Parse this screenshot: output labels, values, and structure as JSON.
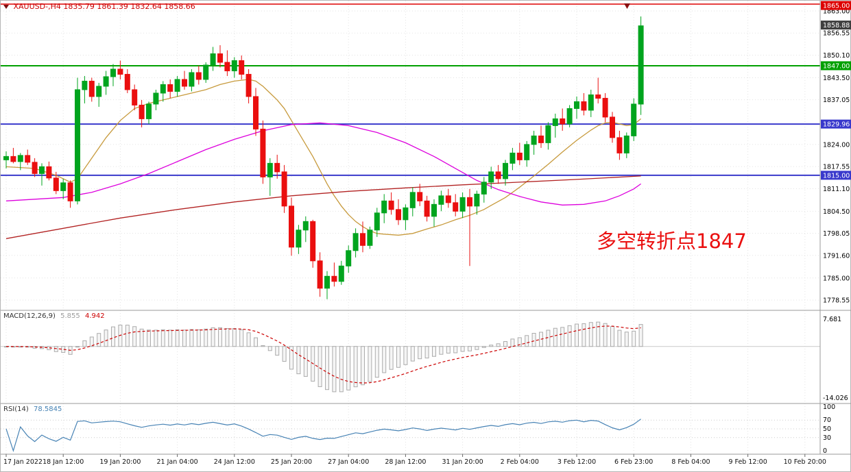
{
  "colors": {
    "up": "#00a41e",
    "down": "#ea0f0f",
    "ma_fast": "#c79a3c",
    "ma_mid": "#dd00dd",
    "ma_slow": "#b22222",
    "level_red": "#dd0000",
    "level_green": "#00a000",
    "level_blue": "#3939cc",
    "tag_current_bg": "#3f3f3f",
    "macd_hist_stroke": "#ababab",
    "macd_signal": "#cc0000",
    "rsi_line": "#4682b4",
    "header_text": "#cc0000",
    "annotation": "#ea1010",
    "grid": "#e3e3e3"
  },
  "header": {
    "symbol": "XAUUSD-,H4",
    "ohlc": "1835.79 1861.39 1832.64 1858.66"
  },
  "annotation": {
    "text": "多空转折点1847"
  },
  "price_axis": {
    "ticks": [
      "1863.00",
      "1856.55",
      "1850.10",
      "1843.50",
      "1837.05",
      "1824.00",
      "1817.55",
      "1811.10",
      "1804.50",
      "1798.05",
      "1791.60",
      "1785.00",
      "1778.55"
    ],
    "tags": [
      {
        "text": "1865.00",
        "price": 1865.0,
        "bg": "#dd0000"
      },
      {
        "text": "1858.88",
        "price": 1858.88,
        "bg": "#3f3f3f"
      },
      {
        "text": "1847.00",
        "price": 1847.0,
        "bg": "#00a000"
      },
      {
        "text": "1829.96",
        "price": 1829.96,
        "bg": "#3939cc"
      },
      {
        "text": "1815.00",
        "price": 1815.0,
        "bg": "#3939cc"
      }
    ]
  },
  "indicators": {
    "macd": {
      "label": "MACD(12,26,9)",
      "value_main": "5.855",
      "value_signal": "4.942",
      "axis_max": "7.681",
      "axis_min": "-14.026"
    },
    "rsi": {
      "label": "RSI(14)",
      "value": "78.5845",
      "axis": [
        "100",
        "70",
        "50",
        "30",
        "0"
      ],
      "levels": [
        70,
        50,
        30
      ]
    }
  },
  "chart_data": {
    "type": "candlestick",
    "symbol": "XAUUSD",
    "timeframe": "H4",
    "price_range": [
      1778.55,
      1865.0
    ],
    "levels": [
      {
        "price": 1865.0,
        "color_key": "level_red",
        "width": 1.4
      },
      {
        "price": 1847.0,
        "color_key": "level_green",
        "width": 2
      },
      {
        "price": 1829.96,
        "color_key": "level_blue",
        "width": 2
      },
      {
        "price": 1815.0,
        "color_key": "level_blue",
        "width": 2
      }
    ],
    "time_labels": [
      "17 Jan 2022",
      "18 Jan 12:00",
      "19 Jan 20:00",
      "21 Jan 04:00",
      "24 Jan 12:00",
      "25 Jan 20:00",
      "27 Jan 04:00",
      "28 Jan 12:00",
      "31 Jan 20:00",
      "2 Feb 04:00",
      "3 Feb 12:00",
      "6 Feb 23:00",
      "8 Feb 04:00",
      "9 Feb 12:00",
      "10 Feb 20:00"
    ],
    "candles": [
      [
        1819.5,
        1822.0,
        1817.0,
        1820.5
      ],
      [
        1820.5,
        1823.0,
        1818.5,
        1819.0
      ],
      [
        1819.0,
        1821.5,
        1816.5,
        1820.8
      ],
      [
        1820.8,
        1822.5,
        1818.0,
        1818.8
      ],
      [
        1818.8,
        1820.0,
        1814.5,
        1815.5
      ],
      [
        1815.5,
        1818.5,
        1812.0,
        1817.5
      ],
      [
        1817.5,
        1819.0,
        1813.5,
        1814.2
      ],
      [
        1814.2,
        1816.0,
        1809.5,
        1810.5
      ],
      [
        1810.5,
        1814.0,
        1808.0,
        1812.8
      ],
      [
        1812.8,
        1813.5,
        1805.5,
        1807.5
      ],
      [
        1807.5,
        1843.5,
        1806.5,
        1840.0
      ],
      [
        1840.0,
        1844.0,
        1836.0,
        1842.5
      ],
      [
        1842.5,
        1843.5,
        1836.5,
        1838.0
      ],
      [
        1838.0,
        1842.0,
        1835.0,
        1841.0
      ],
      [
        1841.0,
        1845.5,
        1838.5,
        1843.8
      ],
      [
        1843.8,
        1847.5,
        1841.0,
        1846.0
      ],
      [
        1846.0,
        1848.5,
        1843.0,
        1844.5
      ],
      [
        1844.5,
        1846.0,
        1839.0,
        1840.0
      ],
      [
        1840.0,
        1841.5,
        1834.0,
        1835.5
      ],
      [
        1835.5,
        1837.0,
        1829.0,
        1831.5
      ],
      [
        1831.5,
        1836.5,
        1830.0,
        1835.8
      ],
      [
        1835.8,
        1840.0,
        1834.0,
        1839.0
      ],
      [
        1839.0,
        1842.5,
        1836.5,
        1841.5
      ],
      [
        1841.5,
        1843.0,
        1837.5,
        1839.5
      ],
      [
        1839.5,
        1844.0,
        1838.0,
        1843.0
      ],
      [
        1843.0,
        1845.5,
        1840.0,
        1841.0
      ],
      [
        1841.0,
        1846.0,
        1839.5,
        1845.0
      ],
      [
        1845.0,
        1847.0,
        1841.5,
        1843.0
      ],
      [
        1843.0,
        1848.0,
        1842.0,
        1847.2
      ],
      [
        1847.2,
        1852.5,
        1845.5,
        1850.5
      ],
      [
        1850.5,
        1853.0,
        1846.5,
        1848.0
      ],
      [
        1848.0,
        1851.5,
        1844.0,
        1845.5
      ],
      [
        1845.5,
        1849.5,
        1843.5,
        1848.5
      ],
      [
        1848.5,
        1850.0,
        1843.0,
        1844.5
      ],
      [
        1844.5,
        1846.0,
        1836.0,
        1838.0
      ],
      [
        1838.0,
        1840.5,
        1826.5,
        1828.5
      ],
      [
        1828.5,
        1831.0,
        1812.5,
        1814.5
      ],
      [
        1814.5,
        1820.0,
        1809.0,
        1818.5
      ],
      [
        1818.5,
        1821.0,
        1814.0,
        1816.0
      ],
      [
        1816.0,
        1818.0,
        1804.0,
        1806.0
      ],
      [
        1806.0,
        1808.5,
        1791.5,
        1794.0
      ],
      [
        1794.0,
        1800.5,
        1792.0,
        1799.0
      ],
      [
        1799.0,
        1803.0,
        1795.5,
        1801.5
      ],
      [
        1801.5,
        1802.0,
        1788.0,
        1790.0
      ],
      [
        1790.0,
        1792.5,
        1779.5,
        1782.0
      ],
      [
        1782.0,
        1787.0,
        1778.8,
        1785.5
      ],
      [
        1785.5,
        1789.5,
        1782.5,
        1784.0
      ],
      [
        1784.0,
        1790.0,
        1783.0,
        1788.5
      ],
      [
        1788.5,
        1794.5,
        1786.5,
        1793.0
      ],
      [
        1793.0,
        1799.5,
        1791.0,
        1798.0
      ],
      [
        1798.0,
        1801.5,
        1792.5,
        1794.5
      ],
      [
        1794.5,
        1800.0,
        1793.5,
        1799.0
      ],
      [
        1799.0,
        1805.5,
        1797.0,
        1804.0
      ],
      [
        1804.0,
        1809.5,
        1801.0,
        1807.5
      ],
      [
        1807.5,
        1810.0,
        1803.5,
        1805.0
      ],
      [
        1805.0,
        1808.0,
        1800.5,
        1802.0
      ],
      [
        1802.0,
        1806.5,
        1799.0,
        1805.5
      ],
      [
        1805.5,
        1811.5,
        1803.0,
        1810.0
      ],
      [
        1810.0,
        1812.5,
        1806.0,
        1807.5
      ],
      [
        1807.5,
        1809.0,
        1801.5,
        1803.0
      ],
      [
        1803.0,
        1808.0,
        1800.0,
        1806.5
      ],
      [
        1806.5,
        1810.5,
        1804.5,
        1809.0
      ],
      [
        1809.0,
        1811.0,
        1805.5,
        1807.0
      ],
      [
        1807.0,
        1809.5,
        1803.0,
        1804.5
      ],
      [
        1804.5,
        1810.0,
        1802.5,
        1808.5
      ],
      [
        1808.5,
        1811.0,
        1788.5,
        1806.0
      ],
      [
        1806.0,
        1810.5,
        1803.5,
        1809.5
      ],
      [
        1809.5,
        1814.5,
        1807.0,
        1813.0
      ],
      [
        1813.0,
        1817.5,
        1811.0,
        1816.0
      ],
      [
        1816.0,
        1818.0,
        1812.5,
        1814.0
      ],
      [
        1814.0,
        1819.5,
        1812.0,
        1818.5
      ],
      [
        1818.5,
        1823.0,
        1816.5,
        1821.5
      ],
      [
        1821.5,
        1824.5,
        1818.0,
        1819.5
      ],
      [
        1819.5,
        1825.0,
        1817.5,
        1824.0
      ],
      [
        1824.0,
        1828.0,
        1821.0,
        1826.5
      ],
      [
        1826.5,
        1829.5,
        1823.0,
        1824.5
      ],
      [
        1824.5,
        1830.5,
        1822.5,
        1829.5
      ],
      [
        1829.5,
        1833.0,
        1826.0,
        1831.5
      ],
      [
        1831.5,
        1834.5,
        1828.0,
        1830.0
      ],
      [
        1830.0,
        1835.5,
        1829.0,
        1834.5
      ],
      [
        1834.5,
        1838.0,
        1831.5,
        1836.5
      ],
      [
        1836.5,
        1839.0,
        1832.5,
        1834.0
      ],
      [
        1834.0,
        1840.0,
        1832.0,
        1838.5
      ],
      [
        1838.5,
        1843.5,
        1836.0,
        1837.5
      ],
      [
        1837.5,
        1839.0,
        1830.5,
        1832.0
      ],
      [
        1832.0,
        1833.5,
        1824.5,
        1826.0
      ],
      [
        1826.0,
        1828.0,
        1819.5,
        1821.5
      ],
      [
        1821.5,
        1827.5,
        1820.0,
        1826.5
      ],
      [
        1826.5,
        1837.5,
        1825.0,
        1835.8
      ],
      [
        1835.79,
        1861.39,
        1832.64,
        1858.66
      ]
    ],
    "ma_lines": [
      {
        "name": "ma-fast",
        "color_key": "ma_fast",
        "points": [
          [
            0,
            1817.5
          ],
          [
            4,
            1817
          ],
          [
            7,
            1815
          ],
          [
            9,
            1813
          ],
          [
            10,
            1814
          ],
          [
            12,
            1820
          ],
          [
            14,
            1826
          ],
          [
            16,
            1831
          ],
          [
            18,
            1834.5
          ],
          [
            20,
            1836
          ],
          [
            22,
            1837
          ],
          [
            24,
            1838
          ],
          [
            26,
            1839
          ],
          [
            28,
            1840
          ],
          [
            30,
            1841.5
          ],
          [
            32,
            1842.5
          ],
          [
            34,
            1843
          ],
          [
            35,
            1842.5
          ],
          [
            36,
            1841
          ],
          [
            37,
            1839
          ],
          [
            38,
            1837
          ],
          [
            39,
            1834.5
          ],
          [
            40,
            1831
          ],
          [
            41,
            1827.5
          ],
          [
            42,
            1824
          ],
          [
            43,
            1820.5
          ],
          [
            44,
            1816.5
          ],
          [
            45,
            1812.5
          ],
          [
            46,
            1809
          ],
          [
            47,
            1806
          ],
          [
            48,
            1803.5
          ],
          [
            49,
            1801.5
          ],
          [
            50,
            1800
          ],
          [
            51,
            1798.8
          ],
          [
            52,
            1798
          ],
          [
            53,
            1797.8
          ],
          [
            55,
            1797.5
          ],
          [
            57,
            1798
          ],
          [
            59,
            1799.3
          ],
          [
            61,
            1800.5
          ],
          [
            63,
            1802
          ],
          [
            65,
            1803.3
          ],
          [
            67,
            1805
          ],
          [
            68,
            1806.2
          ],
          [
            70,
            1808.5
          ],
          [
            72,
            1811.5
          ],
          [
            74,
            1814.8
          ],
          [
            76,
            1818.2
          ],
          [
            78,
            1821.8
          ],
          [
            80,
            1825.2
          ],
          [
            82,
            1828.2
          ],
          [
            83,
            1829.5
          ],
          [
            84,
            1830.3
          ],
          [
            85,
            1830.5
          ],
          [
            86,
            1830
          ],
          [
            87,
            1829.5
          ],
          [
            88,
            1829.8
          ],
          [
            89,
            1831.5
          ]
        ]
      },
      {
        "name": "ma-mid",
        "color_key": "ma_mid",
        "points": [
          [
            0,
            1807.5
          ],
          [
            4,
            1808
          ],
          [
            8,
            1808.5
          ],
          [
            12,
            1810
          ],
          [
            16,
            1812.5
          ],
          [
            20,
            1815.5
          ],
          [
            24,
            1819
          ],
          [
            28,
            1822.5
          ],
          [
            32,
            1825.5
          ],
          [
            36,
            1828
          ],
          [
            40,
            1829.8
          ],
          [
            44,
            1830.3
          ],
          [
            48,
            1829.5
          ],
          [
            52,
            1827.5
          ],
          [
            56,
            1824.5
          ],
          [
            60,
            1820.5
          ],
          [
            63,
            1817
          ],
          [
            66,
            1813.5
          ],
          [
            69,
            1810.8
          ],
          [
            72,
            1808.8
          ],
          [
            75,
            1807.2
          ],
          [
            78,
            1806.3
          ],
          [
            81,
            1806.5
          ],
          [
            84,
            1807.5
          ],
          [
            86,
            1809
          ],
          [
            88,
            1811
          ],
          [
            89,
            1812.5
          ]
        ]
      },
      {
        "name": "ma-slow",
        "color_key": "ma_slow",
        "points": [
          [
            0,
            1796.5
          ],
          [
            8,
            1799.5
          ],
          [
            16,
            1802.5
          ],
          [
            24,
            1805
          ],
          [
            32,
            1807.2
          ],
          [
            40,
            1809
          ],
          [
            48,
            1810.3
          ],
          [
            56,
            1811.3
          ],
          [
            64,
            1812.2
          ],
          [
            72,
            1813
          ],
          [
            80,
            1813.8
          ],
          [
            89,
            1814.8
          ]
        ]
      }
    ],
    "macd_params": [
      12,
      26,
      9
    ],
    "rsi_period": 14
  }
}
